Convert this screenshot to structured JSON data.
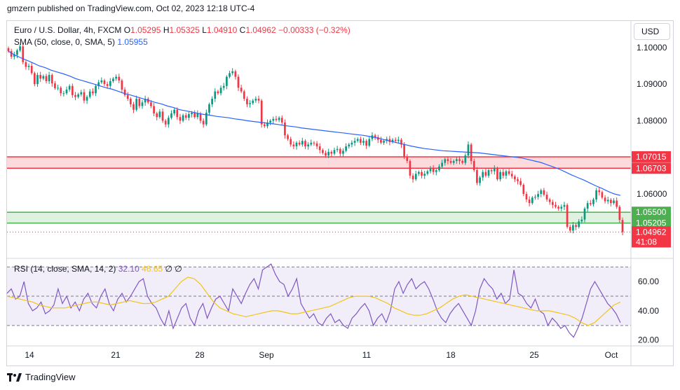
{
  "header": {
    "publish_text": "gmzern published on TradingView.com, Oct 02, 2023 12:18 UTC-4"
  },
  "legend": {
    "symbol": "Euro / U.S. Dollar, 4h, FXCM",
    "o_label": "O",
    "o_value": "1.05295",
    "h_label": "H",
    "h_value": "1.05325",
    "l_label": "L",
    "l_value": "1.04910",
    "c_label": "C",
    "c_value": "1.04962",
    "change": "−0.00333 (−0.32%)",
    "sma_label": "SMA (50, close, 0, SMA, 5)",
    "sma_value": "1.05955",
    "rsi_label": "RSI (14, close, SMA, 14, 2)",
    "rsi_value": "32.10",
    "rsi_ma_value": "46.65",
    "rsi_extra": "∅ ∅"
  },
  "currency_button": "USD",
  "branding": "TradingView",
  "colors": {
    "up": "#089981",
    "down": "#f23645",
    "sma": "#2962ff",
    "rsi": "#7e57c2",
    "rsi_ma": "#f0c419",
    "resistance_zone": "#f23645",
    "support_zone": "#4caf50"
  },
  "chart_data": {
    "type": "candlestick",
    "price_axis": {
      "ticks": [
        "1.10000",
        "1.09000",
        "1.08000",
        "1.06000"
      ],
      "range": [
        1.047,
        1.1015
      ]
    },
    "x_axis": {
      "ticks": [
        "14",
        "21",
        "28",
        "Sep",
        "11",
        "18",
        "25",
        "Oct"
      ]
    },
    "price_labels": {
      "resistance_top": "1.07015",
      "resistance_bottom": "1.06703",
      "support_top": "1.05500",
      "support_bottom": "1.05205",
      "last_price": "1.04962",
      "countdown": "41:08"
    },
    "zones": [
      {
        "name": "resistance",
        "from": 1.06703,
        "to": 1.07015
      },
      {
        "name": "support",
        "from": 1.05205,
        "to": 1.055
      }
    ],
    "close_series": [
      1.099,
      1.0975,
      1.098,
      1.0992,
      1.1003,
      1.096,
      1.0947,
      1.095,
      1.093,
      1.09,
      1.0925,
      1.0915,
      1.0922,
      1.0908,
      1.0925,
      1.0902,
      1.0889,
      1.089,
      1.0875,
      1.0875,
      1.0885,
      1.0895,
      1.087,
      1.0865,
      1.0872,
      1.0878,
      1.0855,
      1.0865,
      1.088,
      1.0875,
      1.0895,
      1.0905,
      1.091,
      1.09,
      1.0895,
      1.0908,
      1.0915,
      1.092,
      1.091,
      1.0885,
      1.087,
      1.086,
      1.0845,
      1.083,
      1.086,
      1.084,
      1.085,
      1.086,
      1.085,
      1.084,
      1.082,
      1.081,
      1.0825,
      1.08,
      1.079,
      1.0808,
      1.082,
      1.083,
      1.081,
      1.08,
      1.0815,
      1.0808,
      1.0818,
      1.0822,
      1.081,
      1.082,
      1.08,
      1.079,
      1.0822,
      1.0845,
      1.086,
      1.088,
      1.0875,
      1.089,
      1.0895,
      1.092,
      1.093,
      1.0935,
      1.092,
      1.089,
      1.088,
      1.086,
      1.0845,
      1.0848,
      1.0855,
      1.086,
      1.0855,
      1.079,
      1.0785,
      1.0795,
      1.08,
      1.0805,
      1.0802,
      1.0808,
      1.0795,
      1.076,
      1.075,
      1.0735,
      1.073,
      1.074,
      1.0735,
      1.0745,
      1.073,
      1.0735,
      1.074,
      1.0738,
      1.073,
      1.072,
      1.0712,
      1.0705,
      1.0715,
      1.071,
      1.072,
      1.0723,
      1.071,
      1.0718,
      1.073,
      1.0735,
      1.074,
      1.0745,
      1.075,
      1.074,
      1.0745,
      1.0732,
      1.075,
      1.076,
      1.0755,
      1.0748,
      1.074,
      1.0745,
      1.075,
      1.0742,
      1.0748,
      1.0745,
      1.0748,
      1.0735,
      1.07,
      1.069,
      1.065,
      1.064,
      1.0655,
      1.066,
      1.065,
      1.0655,
      1.0662,
      1.067,
      1.066,
      1.0665,
      1.0675,
      1.0685,
      1.0695,
      1.069,
      1.0685,
      1.069,
      1.0695,
      1.069,
      1.0685,
      1.0705,
      1.0735,
      1.069,
      1.0665,
      1.063,
      1.0645,
      1.066,
      1.065,
      1.0665,
      1.0662,
      1.067,
      1.064,
      1.066,
      1.065,
      1.0662,
      1.0655,
      1.0648,
      1.064,
      1.0635,
      1.0625,
      1.06,
      1.0585,
      1.0575,
      1.059,
      1.0592,
      1.06,
      1.061,
      1.0598,
      1.0585,
      1.0578,
      1.057,
      1.0565,
      1.056,
      1.0565,
      1.057,
      1.051,
      1.05,
      1.0515,
      1.051,
      1.0525,
      1.053,
      1.056,
      1.0575,
      1.0572,
      1.0585,
      1.061,
      1.0605,
      1.059,
      1.058,
      1.0584,
      1.0575,
      1.0582,
      1.0565,
      1.0529,
      1.0496
    ],
    "sma_series": [
      1.099,
      1.098,
      1.0972,
      1.0965,
      1.0958,
      1.095,
      1.0945,
      1.0938,
      1.0933,
      1.0928,
      1.0922,
      1.0915,
      1.091,
      1.0905,
      1.09,
      1.0895,
      1.089,
      1.0886,
      1.088,
      1.0874,
      1.087,
      1.0865,
      1.086,
      1.0855,
      1.085,
      1.0846,
      1.084,
      1.0836,
      1.083,
      1.0827,
      1.0824,
      1.082,
      1.0817,
      1.0815,
      1.0812,
      1.081,
      1.0808,
      1.0805,
      1.0803,
      1.08,
      1.0798,
      1.0796,
      1.0794,
      1.0792,
      1.079,
      1.0787,
      1.0785,
      1.0783,
      1.078,
      1.0778,
      1.0776,
      1.0774,
      1.0772,
      1.077,
      1.0768,
      1.0766,
      1.0764,
      1.0762,
      1.076,
      1.0757,
      1.0754,
      1.075,
      1.0746,
      1.0742,
      1.0738,
      1.0734,
      1.073,
      1.0727,
      1.0724,
      1.0722,
      1.072,
      1.0718,
      1.0717,
      1.0716,
      1.0715,
      1.0714,
      1.0713,
      1.0712,
      1.071,
      1.0708,
      1.0706,
      1.0704,
      1.0702,
      1.07,
      1.0698,
      1.0694,
      1.069,
      1.0686,
      1.068,
      1.0674,
      1.0668,
      1.066,
      1.0652,
      1.0645,
      1.0638,
      1.063,
      1.0622,
      1.0615,
      1.0607,
      1.06,
      1.0596
    ],
    "rsi_axis": {
      "ticks": [
        "60.00",
        "40.00",
        "20.00"
      ],
      "range": [
        17,
        73
      ],
      "bands": [
        70,
        50,
        30
      ]
    },
    "rsi_series": [
      52,
      55,
      48,
      50,
      60,
      45,
      40,
      42,
      46,
      38,
      40,
      44,
      55,
      45,
      50,
      42,
      46,
      40,
      48,
      52,
      45,
      42,
      50,
      55,
      45,
      40,
      48,
      52,
      46,
      50,
      55,
      60,
      62,
      50,
      45,
      42,
      35,
      30,
      40,
      28,
      35,
      42,
      45,
      35,
      30,
      40,
      45,
      35,
      42,
      48,
      50,
      45,
      40,
      55,
      50,
      45,
      52,
      58,
      62,
      55,
      68,
      70,
      72,
      65,
      60,
      58,
      50,
      55,
      62,
      45,
      40,
      35,
      38,
      32,
      30,
      35,
      38,
      32,
      34,
      30,
      28,
      35,
      38,
      42,
      45,
      40,
      30,
      35,
      38,
      32,
      40,
      55,
      60,
      52,
      58,
      62,
      55,
      58,
      60,
      55,
      48,
      40,
      35,
      32,
      38,
      42,
      45,
      40,
      35,
      30,
      40,
      55,
      62,
      58,
      55,
      48,
      52,
      45,
      48,
      68,
      52,
      50,
      45,
      42,
      48,
      40,
      38,
      30,
      35,
      32,
      28,
      30,
      25,
      22,
      28,
      35,
      45,
      55,
      60,
      55,
      50,
      45,
      42,
      38,
      32
    ],
    "rsi_ma_series": [
      50,
      49,
      48,
      47,
      46,
      44,
      43,
      42,
      42,
      42,
      43,
      44,
      45,
      46,
      46,
      45,
      44,
      45,
      46,
      47,
      46,
      45,
      45,
      46,
      48,
      50,
      55,
      60,
      63,
      62,
      58,
      52,
      46,
      42,
      40,
      38,
      37,
      36,
      37,
      38,
      39,
      40,
      40,
      39,
      38,
      38,
      39,
      40,
      41,
      42,
      43,
      45,
      47,
      49,
      50,
      50,
      50,
      49,
      47,
      45,
      42,
      40,
      38,
      37,
      37,
      38,
      40,
      42,
      45,
      48,
      50,
      51,
      50,
      49,
      48,
      47,
      46,
      45,
      44,
      43,
      42,
      41,
      40,
      40,
      40,
      39,
      38,
      37,
      35,
      32,
      30,
      32,
      36,
      40,
      44,
      46
    ]
  }
}
